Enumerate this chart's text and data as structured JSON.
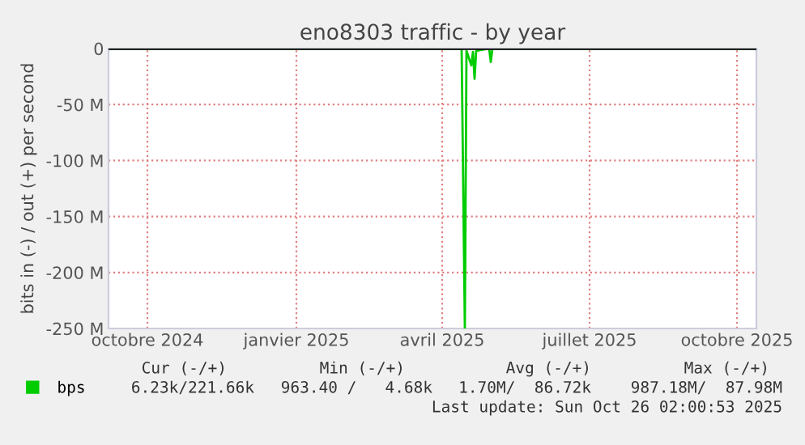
{
  "chart_data": {
    "type": "line",
    "title": "eno8303 traffic - by year",
    "ylabel": "bits in (-) / out (+) per second",
    "x": [
      "2024-09-21",
      "2025-04-27",
      "2025-04-29",
      "2025-04-30",
      "2025-05-03",
      "2025-05-04",
      "2025-05-05",
      "2025-05-06",
      "2025-05-14",
      "2025-05-15",
      "2025-05-16",
      "2025-10-26"
    ],
    "series": [
      {
        "name": "bps",
        "color": "#00cc00",
        "values": [
          0,
          0,
          -250000000,
          -2000000,
          -15000000,
          -3000000,
          -27000000,
          -2000000,
          0,
          -12000000,
          0,
          0
        ]
      }
    ],
    "xlim": [
      "2024-09-21",
      "2025-10-26"
    ],
    "xticks": [
      {
        "value": "2024-10-15",
        "label": "octobre 2024"
      },
      {
        "value": "2025-01-15",
        "label": "janvier 2025"
      },
      {
        "value": "2025-04-15",
        "label": "avril 2025"
      },
      {
        "value": "2025-07-15",
        "label": "juillet 2025"
      },
      {
        "value": "2025-10-14",
        "label": "octobre 2025"
      }
    ],
    "ylim": [
      -250000000,
      0
    ],
    "yticks": [
      {
        "value": -250000000,
        "label": "-250 M"
      },
      {
        "value": -200000000,
        "label": "-200 M"
      },
      {
        "value": -150000000,
        "label": "-150 M"
      },
      {
        "value": -100000000,
        "label": "-100 M"
      },
      {
        "value": -50000000,
        "label": "-50 M"
      },
      0
    ],
    "ref_lines": [
      {
        "axis": "y",
        "value": 0,
        "color": "#000000"
      }
    ],
    "grid": true,
    "legend": "bottom left",
    "annotations": [
      "Cur (-/+)",
      "Min (-/+)",
      "Avg (-/+)",
      "Max (-/+)",
      "6.23k/221.66k",
      "963.40 /   4.68k",
      "1.70M/  86.72k",
      "987.18M/  87.98M",
      "Last update: Sun Oct 26 02:00:53 2025"
    ]
  }
}
